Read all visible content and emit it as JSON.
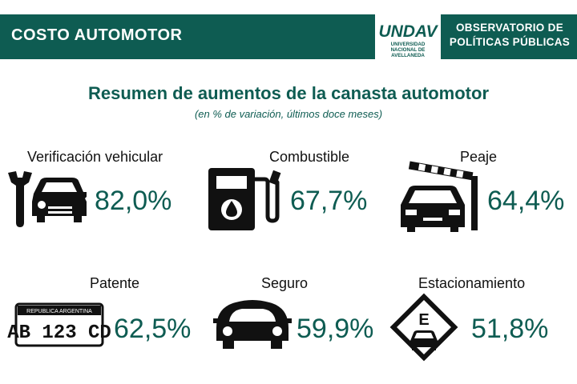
{
  "header": {
    "section_label": "COSTO AUTOMOTOR",
    "logo_text": "UNDAV",
    "logo_line1": "UNIVERSIDAD",
    "logo_line2": "NACIONAL DE",
    "logo_line3": "AVELLANEDA",
    "observatory_line1": "OBSERVATORIO DE",
    "observatory_line2": "POLÍTICAS PÚBLICAS"
  },
  "title": "Resumen de aumentos de la canasta automotor",
  "subtitle": "(en % de variación, últimos doce meses)",
  "items": [
    {
      "label": "Verificación vehicular",
      "value": "82,0%",
      "icon": "wrench-car-icon"
    },
    {
      "label": "Combustible",
      "value": "67,7%",
      "icon": "fuel-pump-icon"
    },
    {
      "label": "Peaje",
      "value": "64,4%",
      "icon": "toll-barrier-icon"
    },
    {
      "label": "Patente",
      "value": "62,5%",
      "icon": "license-plate-icon"
    },
    {
      "label": "Seguro",
      "value": "59,9%",
      "icon": "insured-car-icon"
    },
    {
      "label": "Estacionamiento",
      "value": "51,8%",
      "icon": "parking-sign-icon"
    }
  ],
  "plate": {
    "country": "REPUBLICA ARGENTINA",
    "number": "AB 123 CD"
  },
  "parking_letter": "E",
  "colors": {
    "brand": "#0e5c52",
    "icon": "#111111"
  }
}
